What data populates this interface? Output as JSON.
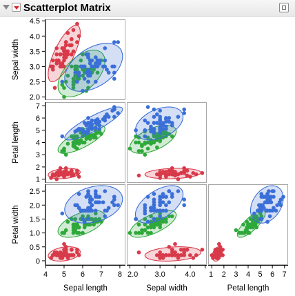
{
  "window": {
    "title": "Scatterplot Matrix"
  },
  "icons": {
    "disclosure": "disclosure-triangle-icon",
    "menu": "red-triangle-menu-icon",
    "corner": "report-options-icon"
  },
  "colors": {
    "setosa": "#d83a4a",
    "versicolor": "#2fa83a",
    "virginica": "#3b6fd8",
    "frame": "#a8a8a8"
  },
  "chart_data": {
    "type": "scatter",
    "variables": [
      "Sepal length",
      "Sepal width",
      "Petal length",
      "Petal width"
    ],
    "ranges": {
      "Sepal length": [
        4,
        8.3
      ],
      "Sepal width": [
        1.9,
        4.55
      ],
      "Petal length": [
        0.7,
        7.3
      ],
      "Petal width": [
        -0.15,
        2.75
      ]
    },
    "ticks": {
      "Sepal length": {
        "values": [
          4,
          5,
          6,
          7,
          8
        ],
        "labels": [
          "4",
          "5",
          "6",
          "7",
          "8"
        ]
      },
      "Sepal width": {
        "values": [
          2.0,
          2.5,
          3.0,
          3.5,
          4.0,
          4.5
        ],
        "labels": [
          "2.0",
          "2.5",
          "3.0",
          "3.5",
          "4.0",
          "4.5"
        ],
        "bottom_labels": [
          "2.0",
          "3.0",
          "4.0"
        ]
      },
      "Petal length": {
        "values": [
          1,
          2,
          3,
          4,
          5,
          6,
          7
        ],
        "labels": [
          "1",
          "2",
          "3",
          "4",
          "5",
          "6",
          "7"
        ]
      },
      "Petal width": {
        "values": [
          0,
          0.5,
          1.0,
          1.5,
          2.0,
          2.5
        ],
        "labels": [
          "0",
          "0.5",
          "1.0",
          "1.5",
          "2.0",
          "2.5"
        ]
      }
    },
    "grid": false,
    "legend": "none",
    "density_ellipses": true,
    "series": [
      {
        "color": "#d83a4a",
        "points": [
          [
            5.1,
            3.5,
            1.4,
            0.2
          ],
          [
            4.9,
            3.0,
            1.4,
            0.2
          ],
          [
            4.7,
            3.2,
            1.3,
            0.2
          ],
          [
            4.6,
            3.1,
            1.5,
            0.2
          ],
          [
            5.0,
            3.6,
            1.4,
            0.2
          ],
          [
            5.4,
            3.9,
            1.7,
            0.4
          ],
          [
            4.6,
            3.4,
            1.4,
            0.3
          ],
          [
            5.0,
            3.4,
            1.5,
            0.2
          ],
          [
            4.4,
            2.9,
            1.4,
            0.2
          ],
          [
            4.9,
            3.1,
            1.5,
            0.1
          ],
          [
            5.4,
            3.7,
            1.5,
            0.2
          ],
          [
            4.8,
            3.4,
            1.6,
            0.2
          ],
          [
            4.8,
            3.0,
            1.4,
            0.1
          ],
          [
            4.3,
            3.0,
            1.1,
            0.1
          ],
          [
            5.8,
            4.0,
            1.2,
            0.2
          ],
          [
            5.7,
            4.4,
            1.5,
            0.4
          ],
          [
            5.4,
            3.9,
            1.3,
            0.4
          ],
          [
            5.1,
            3.5,
            1.4,
            0.3
          ],
          [
            5.7,
            3.8,
            1.7,
            0.3
          ],
          [
            5.1,
            3.8,
            1.5,
            0.3
          ],
          [
            5.4,
            3.4,
            1.7,
            0.2
          ],
          [
            5.1,
            3.7,
            1.5,
            0.4
          ],
          [
            4.6,
            3.6,
            1.0,
            0.2
          ],
          [
            5.1,
            3.3,
            1.7,
            0.5
          ],
          [
            4.8,
            3.4,
            1.9,
            0.2
          ],
          [
            5.0,
            3.0,
            1.6,
            0.2
          ],
          [
            5.0,
            3.4,
            1.6,
            0.4
          ],
          [
            5.2,
            3.5,
            1.5,
            0.2
          ],
          [
            5.2,
            3.4,
            1.4,
            0.2
          ],
          [
            4.7,
            3.2,
            1.6,
            0.2
          ],
          [
            4.8,
            3.1,
            1.6,
            0.2
          ],
          [
            5.4,
            3.4,
            1.5,
            0.4
          ],
          [
            5.2,
            4.1,
            1.5,
            0.1
          ],
          [
            5.5,
            4.2,
            1.4,
            0.2
          ],
          [
            4.9,
            3.1,
            1.5,
            0.2
          ],
          [
            5.0,
            3.2,
            1.2,
            0.2
          ],
          [
            5.5,
            3.5,
            1.3,
            0.2
          ],
          [
            4.9,
            3.6,
            1.4,
            0.1
          ],
          [
            4.4,
            3.0,
            1.3,
            0.2
          ],
          [
            5.1,
            3.4,
            1.5,
            0.2
          ],
          [
            5.0,
            3.5,
            1.3,
            0.3
          ],
          [
            4.5,
            2.3,
            1.3,
            0.3
          ],
          [
            4.4,
            3.2,
            1.3,
            0.2
          ],
          [
            5.0,
            3.5,
            1.6,
            0.6
          ],
          [
            5.1,
            3.8,
            1.9,
            0.4
          ],
          [
            4.8,
            3.0,
            1.4,
            0.3
          ],
          [
            5.1,
            3.8,
            1.6,
            0.2
          ],
          [
            4.6,
            3.2,
            1.4,
            0.2
          ],
          [
            5.3,
            3.7,
            1.5,
            0.2
          ],
          [
            5.0,
            3.3,
            1.4,
            0.2
          ]
        ]
      },
      {
        "color": "#2fa83a",
        "points": [
          [
            7.0,
            3.2,
            4.7,
            1.4
          ],
          [
            6.4,
            3.2,
            4.5,
            1.5
          ],
          [
            6.9,
            3.1,
            4.9,
            1.5
          ],
          [
            5.5,
            2.3,
            4.0,
            1.3
          ],
          [
            6.5,
            2.8,
            4.6,
            1.5
          ],
          [
            5.7,
            2.8,
            4.5,
            1.3
          ],
          [
            6.3,
            3.3,
            4.7,
            1.6
          ],
          [
            4.9,
            2.4,
            3.3,
            1.0
          ],
          [
            6.6,
            2.9,
            4.6,
            1.3
          ],
          [
            5.2,
            2.7,
            3.9,
            1.4
          ],
          [
            5.0,
            2.0,
            3.5,
            1.0
          ],
          [
            5.9,
            3.0,
            4.2,
            1.5
          ],
          [
            6.0,
            2.2,
            4.0,
            1.0
          ],
          [
            6.1,
            2.9,
            4.7,
            1.4
          ],
          [
            5.6,
            2.9,
            3.6,
            1.3
          ],
          [
            6.7,
            3.1,
            4.4,
            1.4
          ],
          [
            5.6,
            3.0,
            4.5,
            1.5
          ],
          [
            5.8,
            2.7,
            4.1,
            1.0
          ],
          [
            6.2,
            2.2,
            4.5,
            1.5
          ],
          [
            5.6,
            2.5,
            3.9,
            1.1
          ],
          [
            5.9,
            3.2,
            4.8,
            1.8
          ],
          [
            6.1,
            2.8,
            4.0,
            1.3
          ],
          [
            6.3,
            2.5,
            4.9,
            1.5
          ],
          [
            6.1,
            2.8,
            4.7,
            1.2
          ],
          [
            6.4,
            2.9,
            4.3,
            1.3
          ],
          [
            6.6,
            3.0,
            4.4,
            1.4
          ],
          [
            6.8,
            2.8,
            4.8,
            1.4
          ],
          [
            6.7,
            3.0,
            5.0,
            1.7
          ],
          [
            6.0,
            2.9,
            4.5,
            1.5
          ],
          [
            5.7,
            2.6,
            3.5,
            1.0
          ],
          [
            5.5,
            2.4,
            3.8,
            1.1
          ],
          [
            5.5,
            2.4,
            3.7,
            1.0
          ],
          [
            5.8,
            2.7,
            3.9,
            1.2
          ],
          [
            6.0,
            2.7,
            5.1,
            1.6
          ],
          [
            5.4,
            3.0,
            4.5,
            1.5
          ],
          [
            6.0,
            3.4,
            4.5,
            1.6
          ],
          [
            6.7,
            3.1,
            4.7,
            1.5
          ],
          [
            6.3,
            2.3,
            4.4,
            1.3
          ],
          [
            5.6,
            3.0,
            4.1,
            1.3
          ],
          [
            5.5,
            2.5,
            4.0,
            1.3
          ],
          [
            5.5,
            2.6,
            4.4,
            1.2
          ],
          [
            6.1,
            3.0,
            4.6,
            1.4
          ],
          [
            5.8,
            2.6,
            4.0,
            1.2
          ],
          [
            5.0,
            2.3,
            3.3,
            1.0
          ],
          [
            5.6,
            2.7,
            4.2,
            1.3
          ],
          [
            5.7,
            3.0,
            4.2,
            1.2
          ],
          [
            5.7,
            2.9,
            4.2,
            1.3
          ],
          [
            6.2,
            2.9,
            4.3,
            1.3
          ],
          [
            5.1,
            2.5,
            3.0,
            1.1
          ],
          [
            5.7,
            2.8,
            4.1,
            1.3
          ]
        ]
      },
      {
        "color": "#3b6fd8",
        "points": [
          [
            6.3,
            3.3,
            6.0,
            2.5
          ],
          [
            5.8,
            2.7,
            5.1,
            1.9
          ],
          [
            7.1,
            3.0,
            5.9,
            2.1
          ],
          [
            6.3,
            2.9,
            5.6,
            1.8
          ],
          [
            6.5,
            3.0,
            5.8,
            2.2
          ],
          [
            7.6,
            3.0,
            6.6,
            2.1
          ],
          [
            4.9,
            2.5,
            4.5,
            1.7
          ],
          [
            7.3,
            2.9,
            6.3,
            1.8
          ],
          [
            6.7,
            2.5,
            5.8,
            1.8
          ],
          [
            7.2,
            3.6,
            6.1,
            2.5
          ],
          [
            6.5,
            3.2,
            5.1,
            2.0
          ],
          [
            6.4,
            2.7,
            5.3,
            1.9
          ],
          [
            6.8,
            3.0,
            5.5,
            2.1
          ],
          [
            5.7,
            2.5,
            5.0,
            2.0
          ],
          [
            5.8,
            2.8,
            5.1,
            2.4
          ],
          [
            6.4,
            3.2,
            5.3,
            2.3
          ],
          [
            6.5,
            3.0,
            5.5,
            1.8
          ],
          [
            7.7,
            3.8,
            6.7,
            2.2
          ],
          [
            7.7,
            2.6,
            6.9,
            2.3
          ],
          [
            6.0,
            2.2,
            5.0,
            1.5
          ],
          [
            6.9,
            3.2,
            5.7,
            2.3
          ],
          [
            5.6,
            2.8,
            4.9,
            2.0
          ],
          [
            7.7,
            2.8,
            6.7,
            2.0
          ],
          [
            6.3,
            2.7,
            4.9,
            1.8
          ],
          [
            6.7,
            3.3,
            5.7,
            2.1
          ],
          [
            7.2,
            3.2,
            6.0,
            1.8
          ],
          [
            6.2,
            2.8,
            4.8,
            1.8
          ],
          [
            6.1,
            3.0,
            4.9,
            1.8
          ],
          [
            6.4,
            2.8,
            5.6,
            2.1
          ],
          [
            7.2,
            3.0,
            5.8,
            1.6
          ],
          [
            7.4,
            2.8,
            6.1,
            1.9
          ],
          [
            7.9,
            3.8,
            6.4,
            2.0
          ],
          [
            6.4,
            2.8,
            5.6,
            2.2
          ],
          [
            6.3,
            2.8,
            5.1,
            1.5
          ],
          [
            6.1,
            2.6,
            5.6,
            1.4
          ],
          [
            7.7,
            3.0,
            6.1,
            2.3
          ],
          [
            6.3,
            3.4,
            5.6,
            2.4
          ],
          [
            6.4,
            3.1,
            5.5,
            1.8
          ],
          [
            6.0,
            3.0,
            4.8,
            1.8
          ],
          [
            6.9,
            3.1,
            5.4,
            2.1
          ],
          [
            6.7,
            3.1,
            5.6,
            2.4
          ],
          [
            6.9,
            3.1,
            5.1,
            2.3
          ],
          [
            5.8,
            2.7,
            5.1,
            1.9
          ],
          [
            6.8,
            3.2,
            5.9,
            2.3
          ],
          [
            6.7,
            3.3,
            5.7,
            2.5
          ],
          [
            6.7,
            3.0,
            5.2,
            2.3
          ],
          [
            6.3,
            2.5,
            5.0,
            1.9
          ],
          [
            6.5,
            3.0,
            5.2,
            2.0
          ],
          [
            6.2,
            3.4,
            5.4,
            2.3
          ],
          [
            5.9,
            3.0,
            5.1,
            1.8
          ]
        ]
      }
    ]
  }
}
